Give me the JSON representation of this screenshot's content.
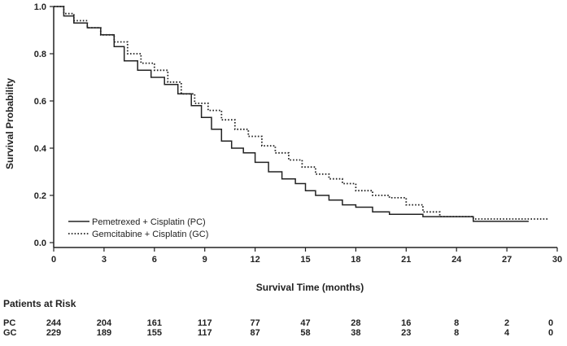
{
  "chart_data": {
    "type": "line",
    "xlabel": "Survival Time (months)",
    "ylabel": "Survival Probability",
    "xlim": [
      0,
      30
    ],
    "ylim": [
      0,
      1.0
    ],
    "xticks": [
      0,
      3,
      6,
      9,
      12,
      15,
      18,
      21,
      24,
      27,
      30
    ],
    "yticks": [
      0.0,
      0.2,
      0.4,
      0.6,
      0.8,
      1.0
    ],
    "ytick_labels": [
      "0.0",
      "0.2",
      "0.4",
      "0.6",
      "0.8",
      "1.0"
    ],
    "grid": false,
    "legend_position": "bottom-left",
    "series": [
      {
        "name": "Pemetrexed + Cisplatin (PC)",
        "style": "solid",
        "color": "#222222",
        "x": [
          0,
          0.6,
          1.2,
          2,
          2.8,
          3.6,
          4.2,
          5,
          5.8,
          6.6,
          7.4,
          8.2,
          8.8,
          9.4,
          10,
          10.6,
          11.3,
          12,
          12.8,
          13.6,
          14.4,
          15,
          15.6,
          16.4,
          17.2,
          18,
          19,
          20,
          21,
          22,
          23,
          24,
          25,
          26,
          27,
          28.3
        ],
        "y": [
          1.0,
          0.96,
          0.93,
          0.91,
          0.88,
          0.83,
          0.77,
          0.73,
          0.7,
          0.67,
          0.63,
          0.58,
          0.53,
          0.48,
          0.43,
          0.4,
          0.38,
          0.34,
          0.3,
          0.27,
          0.25,
          0.22,
          0.2,
          0.18,
          0.16,
          0.15,
          0.13,
          0.12,
          0.12,
          0.11,
          0.11,
          0.11,
          0.09,
          0.09,
          0.09,
          0.09
        ]
      },
      {
        "name": "Gemcitabine + Cisplatin (GC)",
        "style": "dotted",
        "color": "#222222",
        "x": [
          0,
          0.6,
          1.2,
          2,
          2.8,
          3.6,
          4.4,
          5.2,
          6,
          6.8,
          7.6,
          8.4,
          9.2,
          10,
          10.8,
          11.6,
          12.4,
          13.2,
          14,
          14.8,
          15.6,
          16.4,
          17.2,
          18,
          19,
          20,
          21,
          22,
          23,
          24,
          25,
          26,
          27,
          28,
          29.5
        ],
        "y": [
          1.0,
          0.97,
          0.94,
          0.91,
          0.88,
          0.85,
          0.8,
          0.76,
          0.73,
          0.68,
          0.63,
          0.59,
          0.56,
          0.52,
          0.48,
          0.45,
          0.41,
          0.38,
          0.35,
          0.32,
          0.29,
          0.27,
          0.25,
          0.22,
          0.2,
          0.19,
          0.16,
          0.13,
          0.11,
          0.11,
          0.1,
          0.1,
          0.1,
          0.1,
          0.1
        ]
      }
    ]
  },
  "risk_table": {
    "title": "Patients at Risk",
    "timepoints": [
      0,
      3,
      6,
      9,
      12,
      15,
      18,
      21,
      24,
      27,
      30
    ],
    "rows": [
      {
        "label": "PC",
        "values": [
          "244",
          "204",
          "161",
          "117",
          "77",
          "47",
          "28",
          "16",
          "8",
          "2",
          "0"
        ]
      },
      {
        "label": "GC",
        "values": [
          "229",
          "189",
          "155",
          "117",
          "87",
          "58",
          "38",
          "23",
          "8",
          "4",
          "0"
        ]
      }
    ]
  }
}
